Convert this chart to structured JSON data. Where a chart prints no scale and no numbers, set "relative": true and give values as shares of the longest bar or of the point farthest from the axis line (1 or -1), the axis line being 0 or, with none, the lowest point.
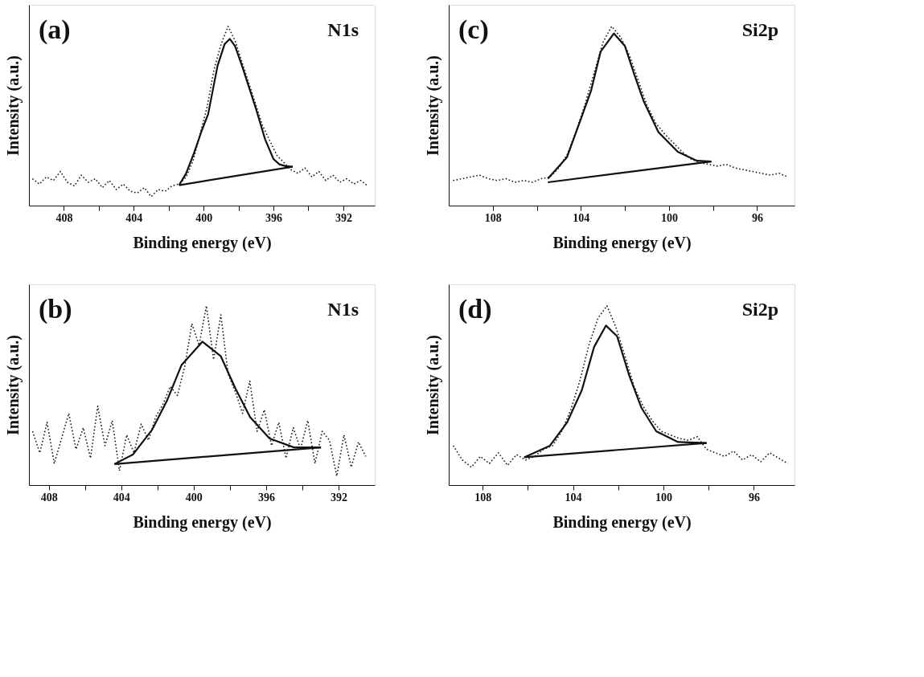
{
  "chart_data": [
    {
      "type": "line",
      "relative": true,
      "xlabel": "Binding energy (eV)",
      "ylabel": "Intensity (a.u.)",
      "annotations": [
        "(a)",
        "N1s"
      ],
      "grid": false,
      "legend": false,
      "xlim": [
        410,
        390.2
      ],
      "xticks": [
        408,
        {
          "value": 406,
          "label": null
        },
        404,
        {
          "value": 402,
          "label": null
        },
        400,
        {
          "value": 398,
          "label": null
        },
        396,
        {
          "value": 394,
          "label": null
        },
        392
      ],
      "series": [
        {
          "type": "line",
          "line_style": "dotted",
          "color": "#1a1a1a",
          "x": [
            409.8,
            409.4,
            409.0,
            408.6,
            408.2,
            407.8,
            407.4,
            407.0,
            406.6,
            406.2,
            405.8,
            405.4,
            405.0,
            404.6,
            404.2,
            403.8,
            403.4,
            403.0,
            402.6,
            402.2,
            401.8,
            401.4,
            401.0,
            400.6,
            400.2,
            399.8,
            399.4,
            399.0,
            398.6,
            398.2,
            397.8,
            397.4,
            397.0,
            396.6,
            396.2,
            395.8,
            395.4,
            395.0,
            394.6,
            394.2,
            393.8,
            393.4,
            393.0,
            392.6,
            392.2,
            391.8,
            391.4,
            391.0,
            390.6
          ],
          "values": [
            0.15,
            0.12,
            0.16,
            0.14,
            0.19,
            0.13,
            0.11,
            0.17,
            0.13,
            0.15,
            0.1,
            0.14,
            0.09,
            0.12,
            0.08,
            0.07,
            0.1,
            0.05,
            0.09,
            0.08,
            0.11,
            0.12,
            0.16,
            0.25,
            0.4,
            0.55,
            0.76,
            0.9,
            1.0,
            0.92,
            0.8,
            0.68,
            0.56,
            0.44,
            0.36,
            0.28,
            0.24,
            0.2,
            0.18,
            0.21,
            0.16,
            0.19,
            0.14,
            0.17,
            0.13,
            0.15,
            0.12,
            0.14,
            0.11
          ]
        },
        {
          "type": "line",
          "line_style": "solid",
          "color": "#111111",
          "x": [
            401.4,
            401.0,
            400.56,
            400.1,
            399.74,
            399.2,
            398.8,
            398.5,
            398.2,
            397.8,
            397.4,
            397.0,
            396.48,
            396.0,
            395.66,
            395.3,
            394.9
          ],
          "values": [
            0.114,
            0.18,
            0.29,
            0.42,
            0.51,
            0.78,
            0.9,
            0.93,
            0.89,
            0.78,
            0.66,
            0.54,
            0.37,
            0.26,
            0.23,
            0.22,
            0.217
          ]
        },
        {
          "type": "line",
          "line_style": "solid",
          "color": "#111111",
          "x": [
            401.4,
            394.9
          ],
          "values": [
            0.114,
            0.217
          ]
        }
      ]
    },
    {
      "type": "line",
      "relative": true,
      "xlabel": "Binding energy (eV)",
      "ylabel": "Intensity (a.u.)",
      "annotations": [
        "(c)",
        "Si2p"
      ],
      "grid": false,
      "legend": false,
      "xlim": [
        110,
        94.3
      ],
      "xticks": [
        108,
        {
          "value": 106,
          "label": null
        },
        104,
        {
          "value": 102,
          "label": null
        },
        100,
        {
          "value": 98,
          "label": null
        },
        96
      ],
      "series": [
        {
          "type": "line",
          "line_style": "dotted",
          "color": "#1a1a1a",
          "x": [
            109.8,
            109.4,
            109.0,
            108.6,
            108.2,
            107.8,
            107.4,
            107.0,
            106.6,
            106.2,
            105.8,
            105.4,
            105.0,
            104.6,
            104.2,
            103.8,
            103.4,
            103.0,
            102.6,
            102.2,
            101.8,
            101.4,
            101.0,
            100.6,
            100.2,
            99.8,
            99.4,
            99.0,
            98.6,
            98.2,
            97.8,
            97.4,
            97.0,
            96.6,
            96.2,
            95.8,
            95.4,
            95.0,
            94.6
          ],
          "values": [
            0.14,
            0.15,
            0.16,
            0.17,
            0.15,
            0.14,
            0.15,
            0.13,
            0.14,
            0.13,
            0.15,
            0.16,
            0.21,
            0.29,
            0.42,
            0.57,
            0.74,
            0.91,
            1.0,
            0.94,
            0.84,
            0.7,
            0.56,
            0.46,
            0.4,
            0.35,
            0.3,
            0.26,
            0.24,
            0.23,
            0.22,
            0.23,
            0.21,
            0.2,
            0.19,
            0.18,
            0.17,
            0.18,
            0.16
          ]
        },
        {
          "type": "line",
          "line_style": "solid",
          "color": "#111111",
          "x": [
            105.5,
            104.63,
            103.98,
            103.54,
            103.1,
            102.5,
            102.0,
            101.57,
            101.14,
            100.48,
            99.6,
            98.73,
            98.08
          ],
          "values": [
            0.15,
            0.27,
            0.49,
            0.64,
            0.86,
            0.96,
            0.89,
            0.73,
            0.58,
            0.41,
            0.3,
            0.25,
            0.246
          ]
        },
        {
          "type": "line",
          "line_style": "solid",
          "color": "#111111",
          "x": [
            105.5,
            98.08
          ],
          "values": [
            0.13,
            0.246
          ]
        }
      ]
    },
    {
      "type": "line",
      "relative": true,
      "xlabel": "Binding energy (eV)",
      "ylabel": "Intensity (a.u.)",
      "annotations": [
        "(b)",
        "N1s"
      ],
      "grid": false,
      "legend": false,
      "xlim": [
        409.1,
        390.0
      ],
      "xticks": [
        408,
        {
          "value": 406,
          "label": null
        },
        404,
        {
          "value": 402,
          "label": null
        },
        400,
        {
          "value": 398,
          "label": null
        },
        396,
        {
          "value": 394,
          "label": null
        },
        392
      ],
      "series": [
        {
          "type": "line",
          "line_style": "dotted",
          "color": "#1a1a1a",
          "x": [
            408.9,
            408.5,
            408.1,
            407.7,
            407.3,
            406.9,
            406.5,
            406.1,
            405.7,
            405.3,
            404.9,
            404.5,
            404.1,
            403.7,
            403.3,
            402.9,
            402.5,
            402.1,
            401.7,
            401.3,
            400.9,
            400.5,
            400.1,
            399.7,
            399.3,
            398.9,
            398.5,
            398.1,
            397.7,
            397.3,
            396.9,
            396.5,
            396.1,
            395.7,
            395.3,
            394.9,
            394.5,
            394.1,
            393.7,
            393.3,
            392.9,
            392.5,
            392.1,
            391.7,
            391.3,
            390.9,
            390.5
          ],
          "values": [
            0.3,
            0.18,
            0.35,
            0.12,
            0.26,
            0.4,
            0.2,
            0.32,
            0.15,
            0.44,
            0.22,
            0.36,
            0.08,
            0.28,
            0.18,
            0.34,
            0.25,
            0.38,
            0.45,
            0.55,
            0.5,
            0.66,
            0.9,
            0.78,
            1.0,
            0.7,
            0.95,
            0.62,
            0.52,
            0.4,
            0.58,
            0.3,
            0.42,
            0.22,
            0.35,
            0.15,
            0.32,
            0.2,
            0.36,
            0.12,
            0.3,
            0.25,
            0.05,
            0.28,
            0.1,
            0.24,
            0.16
          ]
        },
        {
          "type": "line",
          "line_style": "solid",
          "color": "#111111",
          "x": [
            404.38,
            403.36,
            402.29,
            401.48,
            400.67,
            399.52,
            398.51,
            397.7,
            396.89,
            395.81,
            394.46,
            392.97
          ],
          "values": [
            0.117,
            0.17,
            0.31,
            0.47,
            0.67,
            0.8,
            0.72,
            0.54,
            0.38,
            0.26,
            0.21,
            0.21
          ]
        },
        {
          "type": "line",
          "line_style": "solid",
          "color": "#111111",
          "x": [
            404.38,
            392.97
          ],
          "values": [
            0.117,
            0.21
          ]
        }
      ]
    },
    {
      "type": "line",
      "relative": true,
      "xlabel": "Binding energy (eV)",
      "ylabel": "Intensity (a.u.)",
      "annotations": [
        "(d)",
        "Si2p"
      ],
      "grid": false,
      "legend": false,
      "xlim": [
        109.5,
        94.2
      ],
      "xticks": [
        108,
        {
          "value": 106,
          "label": null
        },
        104,
        {
          "value": 102,
          "label": null
        },
        100,
        {
          "value": 98,
          "label": null
        },
        96
      ],
      "series": [
        {
          "type": "line",
          "line_style": "dotted",
          "color": "#1a1a1a",
          "x": [
            109.3,
            108.9,
            108.5,
            108.1,
            107.7,
            107.3,
            106.9,
            106.5,
            106.1,
            105.7,
            105.3,
            104.9,
            104.5,
            104.1,
            103.7,
            103.3,
            102.9,
            102.5,
            102.1,
            101.7,
            101.3,
            100.9,
            100.5,
            100.1,
            99.7,
            99.3,
            98.9,
            98.5,
            98.1,
            97.7,
            97.3,
            96.9,
            96.5,
            96.1,
            95.7,
            95.3,
            94.9,
            94.5
          ],
          "values": [
            0.22,
            0.14,
            0.1,
            0.16,
            0.12,
            0.18,
            0.11,
            0.17,
            0.14,
            0.16,
            0.2,
            0.22,
            0.3,
            0.42,
            0.58,
            0.78,
            0.93,
            1.0,
            0.88,
            0.72,
            0.55,
            0.44,
            0.36,
            0.3,
            0.28,
            0.26,
            0.25,
            0.27,
            0.2,
            0.18,
            0.16,
            0.19,
            0.14,
            0.17,
            0.13,
            0.18,
            0.15,
            0.12
          ]
        },
        {
          "type": "line",
          "line_style": "solid",
          "color": "#111111",
          "x": [
            106.16,
            105.02,
            104.26,
            103.61,
            103.07,
            102.54,
            102.05,
            101.51,
            100.97,
            100.32,
            99.35,
            98.09
          ],
          "values": [
            0.155,
            0.22,
            0.35,
            0.53,
            0.77,
            0.89,
            0.83,
            0.61,
            0.43,
            0.3,
            0.24,
            0.235
          ]
        },
        {
          "type": "line",
          "line_style": "solid",
          "color": "#111111",
          "x": [
            106.16,
            98.09
          ],
          "values": [
            0.155,
            0.235
          ]
        }
      ]
    }
  ]
}
